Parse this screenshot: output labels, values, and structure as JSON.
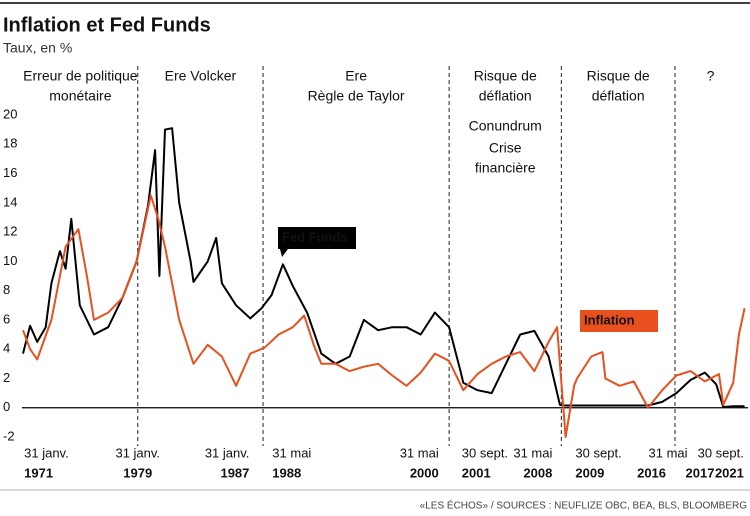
{
  "chart_data": {
    "type": "line",
    "title": "Inflation et Fed Funds",
    "subtitle": "Taux, en %",
    "source": "«LES ÉCHOS» / SOURCES : NEUFLIZE OBC, BEA, BLS, BLOOMBERG",
    "ylim": [
      -2,
      20
    ],
    "yticks": [
      -2,
      0,
      2,
      4,
      6,
      8,
      10,
      12,
      14,
      16,
      18,
      20
    ],
    "xlim": [
      1971.0,
      2021.9
    ],
    "zero_line": true,
    "era_bounds": [
      1979.08,
      1987.9,
      2001.0,
      2008.9,
      2016.9
    ],
    "eras": [
      {
        "lines": [
          "Erreur de politique",
          "monétaire"
        ]
      },
      {
        "lines": [
          "Ere Volcker"
        ]
      },
      {
        "lines": [
          "Ere",
          "Règle de Taylor"
        ]
      },
      {
        "lines": [
          "Risque de",
          "déflation"
        ],
        "notes": [
          "Conundrum",
          "Crise",
          "financière"
        ]
      },
      {
        "lines": [
          "Risque de",
          "déflation"
        ]
      },
      {
        "lines": [
          "?"
        ]
      }
    ],
    "xticks": [
      {
        "value": 1971.08,
        "label": "31 janv."
      },
      {
        "value": 1979.08,
        "label": "31 janv."
      },
      {
        "value": 1987.08,
        "label": "31 janv."
      },
      {
        "value": 1988.41,
        "label": "31 mai"
      },
      {
        "value": 2000.41,
        "label": "31 mai"
      },
      {
        "value": 2001.75,
        "label": "30 sept."
      },
      {
        "value": 2008.41,
        "label": "31 mai"
      },
      {
        "value": 2009.75,
        "label": "30 sept."
      },
      {
        "value": 2016.41,
        "label": "31 mai"
      },
      {
        "value": 2021.75,
        "label": "30 sept."
      }
    ],
    "xtick_years": [
      {
        "value": 1971.08,
        "label": "1971"
      },
      {
        "value": 1979.08,
        "label": "1979"
      },
      {
        "value": 1987.08,
        "label": "1987"
      },
      {
        "value": 1988.41,
        "label": "1988"
      },
      {
        "value": 2000.41,
        "label": "2000"
      },
      {
        "value": 2001.75,
        "label": "2001"
      },
      {
        "value": 2008.41,
        "label": "2008"
      },
      {
        "value": 2009.75,
        "label": "2009"
      },
      {
        "value": 2016.41,
        "label": "2016"
      },
      {
        "value": 2017.5,
        "label": "2017"
      },
      {
        "value": 2021.75,
        "label": "2021"
      }
    ],
    "series": [
      {
        "name": "Fed Funds",
        "color": "#000000",
        "x": [
          1971,
          1971.5,
          1972,
          1972.6,
          1973,
          1973.6,
          1974,
          1974.4,
          1975,
          1976,
          1977,
          1978,
          1979,
          1979.8,
          1980.3,
          1980.6,
          1981,
          1981.5,
          1982,
          1982.8,
          1983,
          1984,
          1984.6,
          1985,
          1986,
          1987,
          1987.8,
          1988.5,
          1989.3,
          1990,
          1991,
          1992,
          1993,
          1994,
          1995,
          1996,
          1997,
          1998,
          1999,
          2000,
          2001,
          2001.8,
          2002,
          2003,
          2004,
          2005,
          2006,
          2007,
          2008,
          2008.8,
          2009,
          2012,
          2015,
          2016,
          2017,
          2018,
          2019,
          2019.8,
          2020.3,
          2021,
          2021.8
        ],
        "values": [
          3.7,
          5.6,
          4.5,
          5.5,
          8.5,
          10.7,
          9.5,
          12.9,
          7,
          5,
          5.5,
          7.5,
          10,
          13.8,
          17.6,
          9,
          19,
          19.1,
          14,
          10,
          8.6,
          10,
          11.6,
          8.5,
          7,
          6.1,
          6.8,
          7.7,
          9.8,
          8.3,
          6.5,
          3.7,
          3,
          3.5,
          6,
          5.3,
          5.5,
          5.5,
          5,
          6.5,
          5.5,
          2.5,
          1.7,
          1.2,
          1,
          3,
          5,
          5.25,
          3.5,
          0.2,
          0.15,
          0.15,
          0.15,
          0.4,
          1,
          1.9,
          2.4,
          1.6,
          0.05,
          0.1,
          0.1
        ]
      },
      {
        "name": "Inflation",
        "color": "#e8501e",
        "x": [
          1971,
          1971.5,
          1972,
          1973,
          1974,
          1974.9,
          1975.5,
          1976,
          1977,
          1978,
          1979,
          1980,
          1980.5,
          1981,
          1982,
          1983,
          1984,
          1985,
          1986,
          1987,
          1988,
          1989,
          1990,
          1990.8,
          1991.5,
          1992,
          1993,
          1994,
          1995,
          1996,
          1997,
          1998,
          1999,
          2000,
          2001,
          2002,
          2003,
          2004,
          2005,
          2006,
          2007,
          2008,
          2008.6,
          2009.2,
          2009.8,
          2010,
          2011,
          2011.8,
          2012,
          2013,
          2014,
          2015,
          2016,
          2017,
          2018,
          2019,
          2020,
          2020.3,
          2021,
          2021.4,
          2021.8
        ],
        "values": [
          5.3,
          4,
          3.3,
          6,
          11,
          12.2,
          9,
          6,
          6.5,
          7.5,
          10,
          14.5,
          13,
          11,
          6,
          3,
          4.3,
          3.5,
          1.5,
          3.7,
          4.1,
          5,
          5.5,
          6.3,
          4.2,
          3,
          3,
          2.5,
          2.8,
          3,
          2.2,
          1.5,
          2.4,
          3.7,
          3.2,
          1.2,
          2.3,
          3,
          3.5,
          3.8,
          2.5,
          4.5,
          5.5,
          -2,
          1.5,
          2,
          3.5,
          3.8,
          2,
          1.5,
          1.8,
          0,
          1.2,
          2.2,
          2.5,
          1.8,
          2.3,
          0.2,
          1.7,
          5,
          6.8
        ]
      }
    ]
  }
}
